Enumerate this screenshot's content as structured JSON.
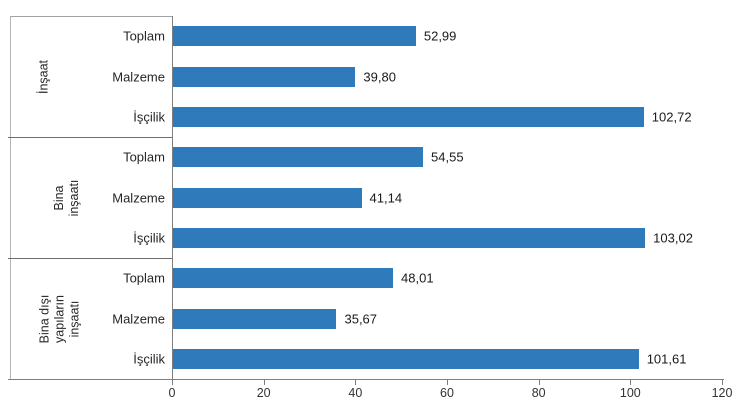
{
  "chart": {
    "background": "#ffffff",
    "bar_color": "#2E7ABA",
    "axis_color": "#7F7F7F",
    "panel_border_color": "#A3A3A3",
    "text_color": "#262626"
  },
  "chart_data": {
    "type": "bar",
    "orientation": "horizontal",
    "title": "",
    "xlabel": "",
    "ylabel": "",
    "xlim": [
      0,
      120
    ],
    "x_ticks": [
      0,
      20,
      40,
      60,
      80,
      100,
      120
    ],
    "grid": false,
    "legend": false,
    "value_decimal_separator": ",",
    "groups": [
      {
        "label": "İnşaat",
        "label_lines": [
          "İnşaat"
        ],
        "categories": [
          "Toplam",
          "Malzeme",
          "İşçilik"
        ],
        "values": [
          52.99,
          39.8,
          102.72
        ],
        "value_labels": [
          "52,99",
          "39,80",
          "102,72"
        ]
      },
      {
        "label": "Bina inşaatı",
        "label_lines": [
          "Bina",
          "inşaatı"
        ],
        "categories": [
          "Toplam",
          "Malzeme",
          "İşçilik"
        ],
        "values": [
          54.55,
          41.14,
          103.02
        ],
        "value_labels": [
          "54,55",
          "41,14",
          "103,02"
        ]
      },
      {
        "label": "Bina dışı yapıların inşaatı",
        "label_lines": [
          "Bina dışı",
          "yapıların",
          "inşaatı"
        ],
        "categories": [
          "Toplam",
          "Malzeme",
          "İşçilik"
        ],
        "values": [
          48.01,
          35.67,
          101.61
        ],
        "value_labels": [
          "48,01",
          "35,67",
          "101,61"
        ]
      }
    ]
  }
}
